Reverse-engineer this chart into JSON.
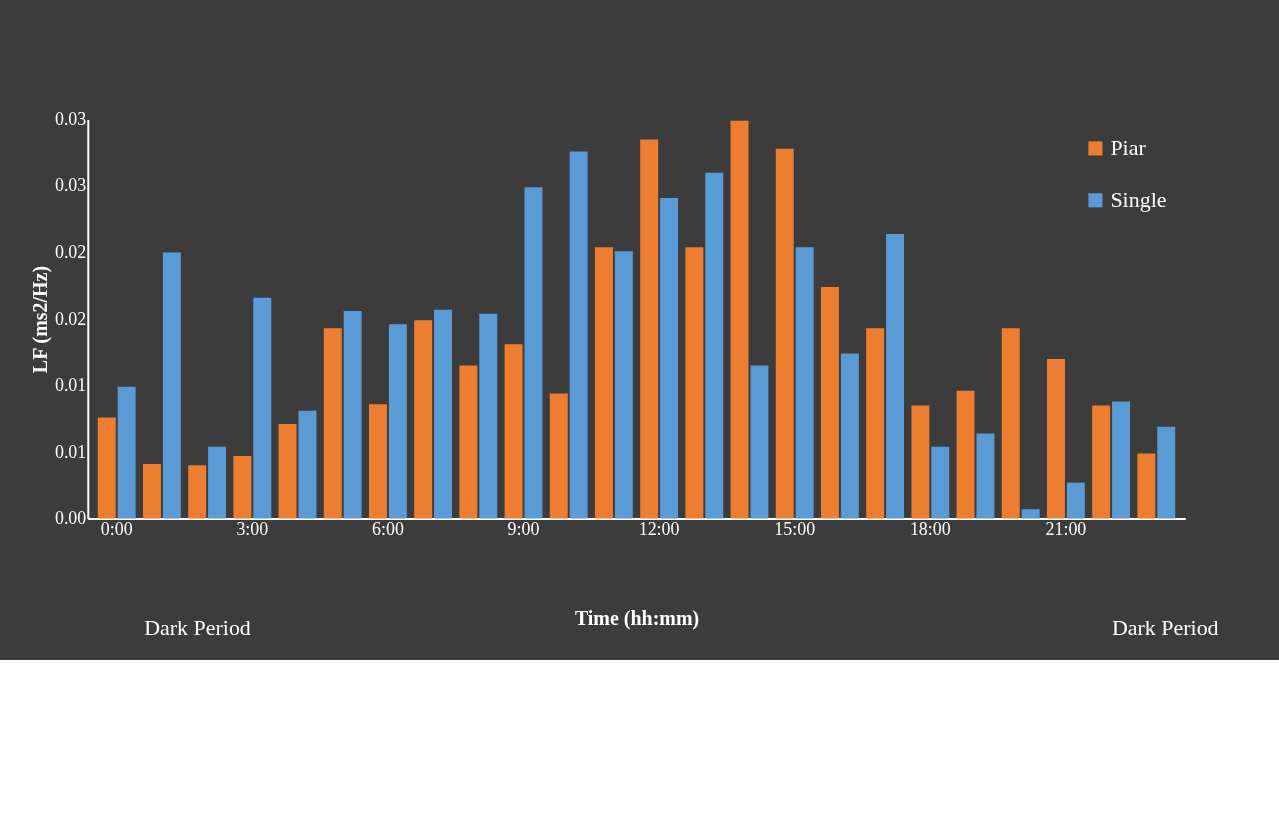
{
  "chart_data": {
    "type": "bar",
    "xlabel": "Time (hh:mm)",
    "ylabel": "LF (ms2/Hz)",
    "categories": [
      "0:00",
      null,
      null,
      "3:00",
      null,
      null,
      "6:00",
      null,
      null,
      "9:00",
      null,
      null,
      "12:00",
      null,
      null,
      "15:00",
      null,
      null,
      "18:00",
      null,
      null,
      "21:00",
      null,
      null
    ],
    "series": [
      {
        "name": "Piar",
        "color": "#ed7d31",
        "values": [
          0.0076,
          0.0041,
          0.004,
          0.0047,
          0.0071,
          0.0143,
          0.0086,
          0.0149,
          0.0115,
          0.0131,
          0.0094,
          0.0204,
          0.0285,
          0.0204,
          0.0299,
          0.0278,
          0.0174,
          0.0143,
          0.0085,
          0.0096,
          0.0143,
          0.012,
          0.0085,
          0.0049
        ]
      },
      {
        "name": "Single",
        "color": "#5b9bd5",
        "values": [
          0.0099,
          0.02,
          0.0054,
          0.0166,
          0.0081,
          0.0156,
          0.0146,
          0.0157,
          0.0154,
          0.0249,
          0.0276,
          0.0201,
          0.0241,
          0.026,
          0.0115,
          0.0204,
          0.0124,
          0.0214,
          0.0054,
          0.0064,
          0.0007,
          0.0027,
          0.0088,
          0.0069
        ]
      }
    ],
    "ylim": [
      0,
      0.03
    ],
    "yticks": [
      {
        "value": 0,
        "label": "0.00"
      },
      {
        "value": 0.005,
        "label": "0.01"
      },
      {
        "value": 0.01,
        "label": "0.01"
      },
      {
        "value": 0.015,
        "label": "0.02"
      },
      {
        "value": 0.02,
        "label": "0.02"
      },
      {
        "value": 0.025,
        "label": "0.03"
      },
      {
        "value": 0.03,
        "label": "0.03"
      }
    ],
    "grid": false,
    "legend": "top right",
    "annotations": [
      "Dark Period",
      "Dark Period"
    ]
  }
}
